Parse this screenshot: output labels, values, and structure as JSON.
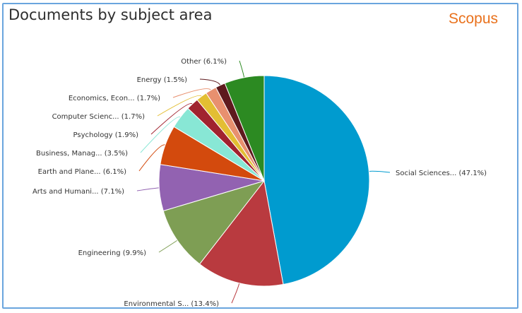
{
  "header": {
    "title": "Documents by subject area",
    "brand": "Scopus"
  },
  "colors": {
    "frame_border": "#6aa5de",
    "brand": "#e9711c",
    "title_text": "#2e2e2e"
  },
  "chart_data": {
    "type": "pie",
    "title": "Documents by subject area",
    "unit": "%",
    "start": "top, clockwise",
    "slices": [
      {
        "label": "Social Sciences... (47.1%)",
        "value": 47.1,
        "color": "#009bcf"
      },
      {
        "label": "Environmental S... (13.4%)",
        "value": 13.4,
        "color": "#b93a3f"
      },
      {
        "label": "Engineering (9.9%)",
        "value": 9.9,
        "color": "#7e9e54"
      },
      {
        "label": "Arts and Humani... (7.1%)",
        "value": 7.1,
        "color": "#9262b1"
      },
      {
        "label": "Earth and Plane... (6.1%)",
        "value": 6.1,
        "color": "#d34a0d"
      },
      {
        "label": "Business, Manag... (3.5%)",
        "value": 3.5,
        "color": "#88e7d5"
      },
      {
        "label": "Psychology (1.9%)",
        "value": 1.9,
        "color": "#a1232f"
      },
      {
        "label": "Computer Scienc... (1.7%)",
        "value": 1.7,
        "color": "#e3be33"
      },
      {
        "label": "Economics, Econ... (1.7%)",
        "value": 1.7,
        "color": "#e8906f"
      },
      {
        "label": "Energy (1.5%)",
        "value": 1.5,
        "color": "#5e1a1e"
      },
      {
        "label": "Other (6.1%)",
        "value": 6.1,
        "color": "#2c8a22"
      }
    ]
  }
}
